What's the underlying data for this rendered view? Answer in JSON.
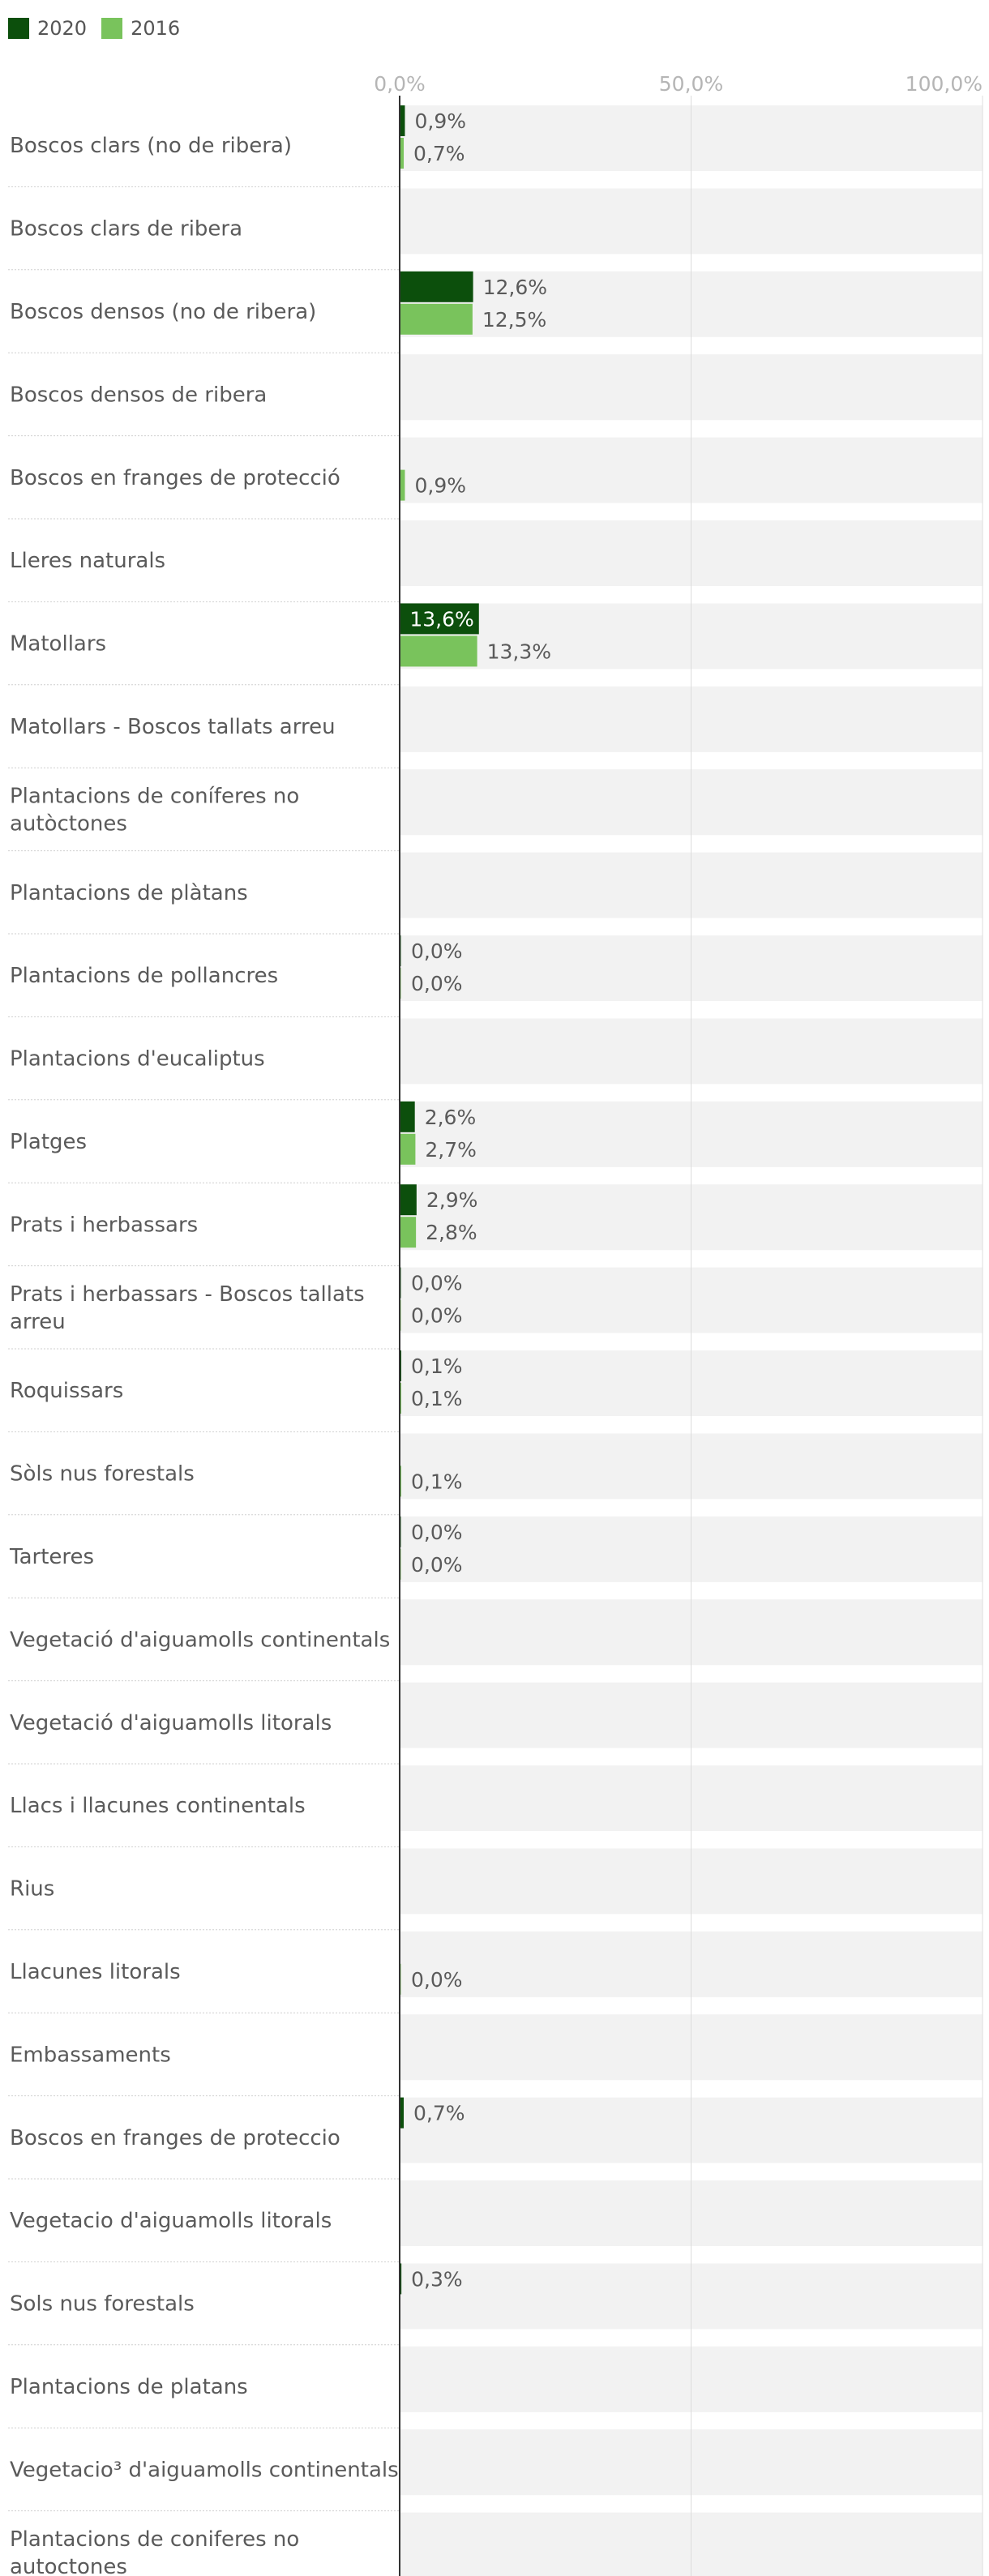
{
  "chart_data": {
    "type": "bar",
    "orientation": "horizontal",
    "legend_position": "top-left",
    "grid": true,
    "xlim": [
      0,
      100
    ],
    "x_ticks": [
      "0,0%",
      "50,0%",
      "100,0%"
    ],
    "x_tick_values": [
      0,
      50,
      100
    ],
    "colors": {
      "2020": "#0c4f0c",
      "2016": "#79c35c",
      "row_bg": "#f2f2f2",
      "grid": "#dcdcdc",
      "axis": "#333333",
      "separator": "#cfcfcf"
    },
    "series": [
      {
        "name": "2020",
        "color": "#0c4f0c",
        "values": [
          0.9,
          null,
          12.6,
          null,
          null,
          null,
          13.6,
          null,
          null,
          null,
          0.0,
          null,
          2.6,
          2.9,
          0.0,
          0.1,
          null,
          0.0,
          null,
          null,
          null,
          null,
          null,
          null,
          0.7,
          null,
          0.3,
          null,
          null,
          null
        ],
        "labels": [
          "0,9%",
          "",
          "12,6%",
          "",
          "",
          "",
          "13,6%",
          "",
          "",
          "",
          "0,0%",
          "",
          "2,6%",
          "2,9%",
          "0,0%",
          "0,1%",
          "",
          "0,0%",
          "",
          "",
          "",
          "",
          "",
          "",
          "0,7%",
          "",
          "0,3%",
          "",
          "",
          ""
        ]
      },
      {
        "name": "2016",
        "color": "#79c35c",
        "values": [
          0.7,
          null,
          12.5,
          null,
          0.9,
          null,
          13.3,
          null,
          null,
          null,
          0.0,
          null,
          2.7,
          2.8,
          0.0,
          0.1,
          0.1,
          0.0,
          null,
          null,
          null,
          null,
          0.0,
          null,
          null,
          null,
          null,
          null,
          null,
          null
        ],
        "labels": [
          "0,7%",
          "",
          "12,5%",
          "",
          "0,9%",
          "",
          "13,3%",
          "",
          "",
          "",
          "0,0%",
          "",
          "2,7%",
          "2,8%",
          "0,0%",
          "0,1%",
          "0,1%",
          "0,0%",
          "",
          "",
          "",
          "",
          "0,0%",
          "",
          "",
          "",
          "",
          "",
          "",
          ""
        ]
      }
    ],
    "categories": [
      [
        "Boscos clars (no de ribera)"
      ],
      [
        "Boscos clars de ribera"
      ],
      [
        "Boscos densos (no de ribera)"
      ],
      [
        "Boscos densos de ribera"
      ],
      [
        "Boscos en franges de protecció"
      ],
      [
        "Lleres naturals"
      ],
      [
        "Matollars"
      ],
      [
        "Matollars - Boscos tallats arreu"
      ],
      [
        "Plantacions de coníferes no",
        "autòctones"
      ],
      [
        "Plantacions de plàtans"
      ],
      [
        "Plantacions de pollancres"
      ],
      [
        "Plantacions d'eucaliptus"
      ],
      [
        "Platges"
      ],
      [
        "Prats i herbassars"
      ],
      [
        "Prats i herbassars - Boscos tallats",
        "arreu"
      ],
      [
        "Roquissars"
      ],
      [
        "Sòls nus forestals"
      ],
      [
        "Tarteres"
      ],
      [
        "Vegetació d'aiguamolls continentals"
      ],
      [
        "Vegetació d'aiguamolls litorals"
      ],
      [
        "Llacs i llacunes continentals"
      ],
      [
        "Rius"
      ],
      [
        "Llacunes litorals"
      ],
      [
        "Embassaments"
      ],
      [
        "Boscos en franges de proteccio"
      ],
      [
        "Vegetacio d'aiguamolls litorals"
      ],
      [
        "Sols nus forestals"
      ],
      [
        "Plantacions de platans"
      ],
      [
        "Vegetacio³ d'aiguamolls continentals"
      ],
      [
        "Plantacions de coniferes no",
        "autoctones"
      ]
    ]
  }
}
